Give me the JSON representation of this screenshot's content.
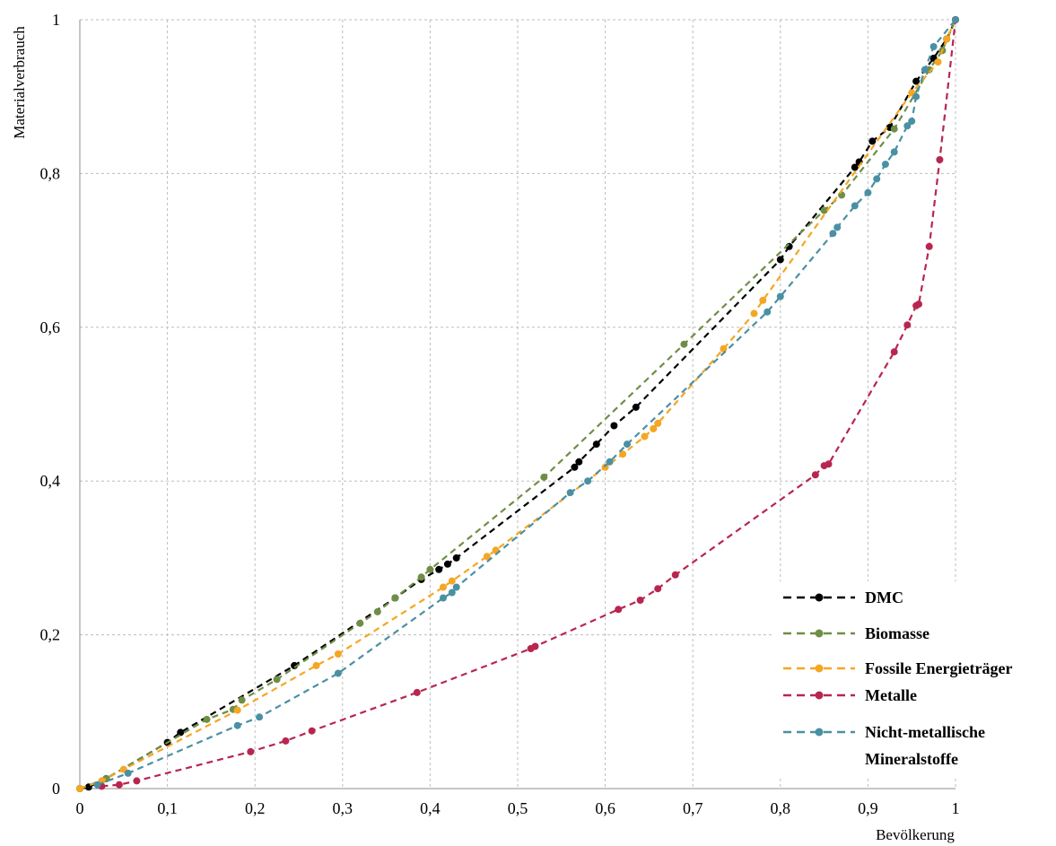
{
  "chart_data": {
    "type": "line",
    "xlabel": "Bevölkerung",
    "ylabel": "Materialverbrauch",
    "xlim": [
      0,
      1
    ],
    "ylim": [
      0,
      1
    ],
    "x_ticks": [
      "0",
      "0,1",
      "0,2",
      "0,3",
      "0,4",
      "0,5",
      "0,6",
      "0,7",
      "0,8",
      "0,9",
      "1"
    ],
    "y_ticks": [
      "0",
      "0,2",
      "0,4",
      "0,6",
      "0,8",
      "1"
    ],
    "grid": true,
    "legend_position": "bottom-right",
    "series": [
      {
        "name": "DMC",
        "color": "#000000",
        "points": [
          [
            0,
            0
          ],
          [
            0.01,
            0.002
          ],
          [
            0.03,
            0.013
          ],
          [
            0.1,
            0.06
          ],
          [
            0.115,
            0.073
          ],
          [
            0.245,
            0.16
          ],
          [
            0.36,
            0.248
          ],
          [
            0.39,
            0.272
          ],
          [
            0.41,
            0.285
          ],
          [
            0.42,
            0.292
          ],
          [
            0.43,
            0.3
          ],
          [
            0.565,
            0.418
          ],
          [
            0.57,
            0.425
          ],
          [
            0.59,
            0.448
          ],
          [
            0.61,
            0.472
          ],
          [
            0.635,
            0.496
          ],
          [
            0.8,
            0.688
          ],
          [
            0.81,
            0.705
          ],
          [
            0.885,
            0.808
          ],
          [
            0.89,
            0.815
          ],
          [
            0.905,
            0.842
          ],
          [
            0.925,
            0.86
          ],
          [
            0.955,
            0.92
          ],
          [
            0.975,
            0.95
          ],
          [
            0.99,
            0.975
          ],
          [
            1,
            1
          ]
        ]
      },
      {
        "name": "Biomasse",
        "color": "#6f8e45",
        "points": [
          [
            0,
            0
          ],
          [
            0.03,
            0.013
          ],
          [
            0.145,
            0.09
          ],
          [
            0.175,
            0.103
          ],
          [
            0.185,
            0.115
          ],
          [
            0.225,
            0.142
          ],
          [
            0.32,
            0.215
          ],
          [
            0.34,
            0.23
          ],
          [
            0.36,
            0.248
          ],
          [
            0.39,
            0.275
          ],
          [
            0.4,
            0.285
          ],
          [
            0.53,
            0.405
          ],
          [
            0.69,
            0.578
          ],
          [
            0.85,
            0.752
          ],
          [
            0.87,
            0.772
          ],
          [
            0.93,
            0.858
          ],
          [
            0.97,
            0.935
          ],
          [
            0.985,
            0.96
          ],
          [
            1,
            1
          ]
        ]
      },
      {
        "name": "Fossile Energieträger",
        "color": "#f5a623",
        "points": [
          [
            0,
            0
          ],
          [
            0.025,
            0.01
          ],
          [
            0.05,
            0.025
          ],
          [
            0.18,
            0.102
          ],
          [
            0.27,
            0.16
          ],
          [
            0.295,
            0.175
          ],
          [
            0.415,
            0.262
          ],
          [
            0.425,
            0.27
          ],
          [
            0.465,
            0.302
          ],
          [
            0.475,
            0.31
          ],
          [
            0.6,
            0.418
          ],
          [
            0.62,
            0.435
          ],
          [
            0.645,
            0.458
          ],
          [
            0.655,
            0.468
          ],
          [
            0.66,
            0.475
          ],
          [
            0.735,
            0.572
          ],
          [
            0.77,
            0.618
          ],
          [
            0.78,
            0.635
          ],
          [
            0.95,
            0.905
          ],
          [
            0.98,
            0.945
          ],
          [
            0.99,
            0.975
          ],
          [
            1,
            1
          ]
        ]
      },
      {
        "name": "Metalle",
        "color": "#b8264f",
        "points": [
          [
            0.025,
            0.003
          ],
          [
            0.045,
            0.005
          ],
          [
            0.065,
            0.01
          ],
          [
            0.195,
            0.048
          ],
          [
            0.235,
            0.062
          ],
          [
            0.265,
            0.075
          ],
          [
            0.385,
            0.125
          ],
          [
            0.515,
            0.182
          ],
          [
            0.52,
            0.185
          ],
          [
            0.615,
            0.233
          ],
          [
            0.64,
            0.245
          ],
          [
            0.66,
            0.26
          ],
          [
            0.68,
            0.278
          ],
          [
            0.84,
            0.408
          ],
          [
            0.85,
            0.42
          ],
          [
            0.855,
            0.422
          ],
          [
            0.93,
            0.568
          ],
          [
            0.945,
            0.603
          ],
          [
            0.955,
            0.628
          ],
          [
            0.958,
            0.63
          ],
          [
            0.97,
            0.705
          ],
          [
            0.982,
            0.818
          ],
          [
            1,
            1
          ]
        ]
      },
      {
        "name": "Nicht-metallische Mineralstoffe",
        "color": "#4a90a4",
        "points": [
          [
            0.02,
            0.005
          ],
          [
            0.055,
            0.02
          ],
          [
            0.18,
            0.082
          ],
          [
            0.205,
            0.093
          ],
          [
            0.295,
            0.15
          ],
          [
            0.415,
            0.248
          ],
          [
            0.425,
            0.255
          ],
          [
            0.43,
            0.262
          ],
          [
            0.56,
            0.385
          ],
          [
            0.58,
            0.4
          ],
          [
            0.605,
            0.425
          ],
          [
            0.625,
            0.448
          ],
          [
            0.785,
            0.62
          ],
          [
            0.8,
            0.64
          ],
          [
            0.86,
            0.722
          ],
          [
            0.865,
            0.73
          ],
          [
            0.885,
            0.758
          ],
          [
            0.9,
            0.775
          ],
          [
            0.91,
            0.793
          ],
          [
            0.92,
            0.812
          ],
          [
            0.93,
            0.828
          ],
          [
            0.945,
            0.862
          ],
          [
            0.95,
            0.868
          ],
          [
            0.955,
            0.9
          ],
          [
            0.965,
            0.935
          ],
          [
            0.975,
            0.965
          ],
          [
            1,
            1
          ]
        ]
      }
    ]
  }
}
